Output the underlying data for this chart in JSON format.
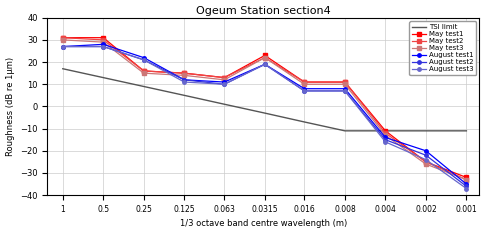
{
  "title": "Ogeum Station section4",
  "xlabel": "1/3 octave band centre wavelength (m)",
  "ylabel": "Roughness (dB re 1μm)",
  "x_ticks": [
    1,
    0.5,
    0.25,
    0.125,
    0.063,
    0.0315,
    0.016,
    0.008,
    0.004,
    0.002,
    0.001
  ],
  "x_tick_labels": [
    "1",
    "0.5",
    "0.25",
    "0.125",
    "0.063",
    "0.0315",
    "0.016",
    "0.008",
    "0.004",
    "0.002",
    "0.001"
  ],
  "ylim": [
    -40,
    40
  ],
  "y_ticks": [
    -40,
    -30,
    -20,
    -10,
    0,
    10,
    20,
    30,
    40
  ],
  "tsi": {
    "x": [
      1,
      0.5,
      0.25,
      0.125,
      0.063,
      0.0315,
      0.016,
      0.008,
      0.004,
      0.002,
      0.001
    ],
    "y": [
      17,
      13,
      9,
      5,
      1,
      -3,
      -7,
      -11,
      -11,
      -11,
      -11
    ],
    "color": "#555555",
    "label": "TSI limit"
  },
  "series": [
    {
      "label": "May test1",
      "x": [
        1,
        0.5,
        0.25,
        0.125,
        0.063,
        0.0315,
        0.016,
        0.008,
        0.004,
        0.002,
        0.001
      ],
      "y": [
        31,
        31,
        16,
        15,
        13,
        23,
        11,
        11,
        -11,
        -25,
        -32
      ],
      "color": "#ff0000",
      "marker": "s"
    },
    {
      "label": "May test2",
      "x": [
        1,
        0.5,
        0.25,
        0.125,
        0.063,
        0.0315,
        0.016,
        0.008,
        0.004,
        0.002,
        0.001
      ],
      "y": [
        31,
        30,
        16,
        15,
        13,
        22,
        11,
        11,
        -12,
        -25,
        -33
      ],
      "color": "#ee4444",
      "marker": "s"
    },
    {
      "label": "May test3",
      "x": [
        1,
        0.5,
        0.25,
        0.125,
        0.063,
        0.0315,
        0.016,
        0.008,
        0.004,
        0.002,
        0.001
      ],
      "y": [
        30,
        29,
        15,
        14,
        12,
        22,
        10,
        10,
        -13,
        -26,
        -33
      ],
      "color": "#cc7777",
      "marker": "s"
    },
    {
      "label": "August test1",
      "x": [
        1,
        0.5,
        0.25,
        0.125,
        0.063,
        0.0315,
        0.016,
        0.008,
        0.004,
        0.002,
        0.001
      ],
      "y": [
        27,
        28,
        22,
        12,
        11,
        19,
        8,
        8,
        -14,
        -20,
        -35
      ],
      "color": "#0000ff",
      "marker": "o"
    },
    {
      "label": "August test2",
      "x": [
        1,
        0.5,
        0.25,
        0.125,
        0.063,
        0.0315,
        0.016,
        0.008,
        0.004,
        0.002,
        0.001
      ],
      "y": [
        27,
        27,
        21,
        12,
        10,
        19,
        7,
        7,
        -15,
        -22,
        -36
      ],
      "color": "#3333dd",
      "marker": "o"
    },
    {
      "label": "August test3",
      "x": [
        1,
        0.5,
        0.25,
        0.125,
        0.063,
        0.0315,
        0.016,
        0.008,
        0.004,
        0.002,
        0.001
      ],
      "y": [
        27,
        27,
        21,
        11,
        10,
        19,
        7,
        7,
        -16,
        -24,
        -37
      ],
      "color": "#6666cc",
      "marker": "o"
    }
  ],
  "background_color": "#ffffff",
  "grid_color": "#cccccc"
}
